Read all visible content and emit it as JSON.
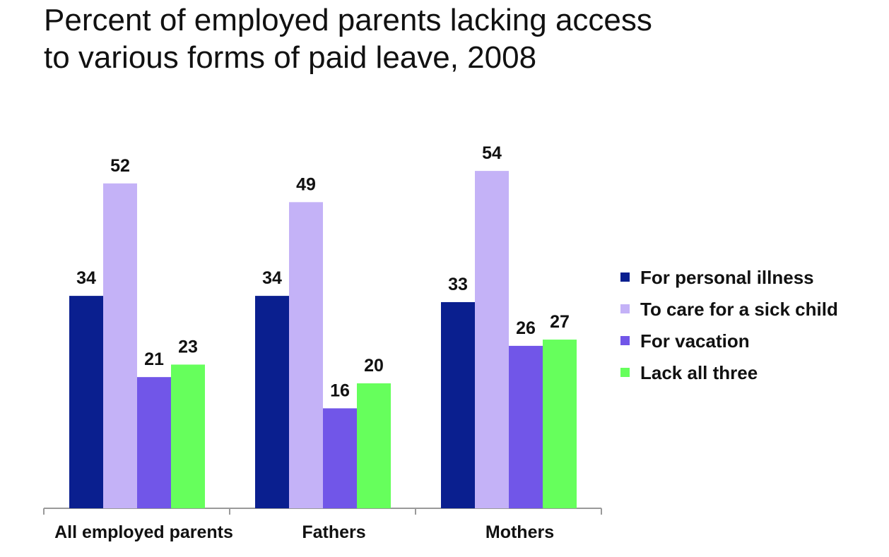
{
  "title_line1": "Percent of employed parents lacking access",
  "title_line2": "to various forms of paid leave, 2008",
  "chart_data": {
    "type": "bar",
    "title": "Percent of employed parents lacking access to various forms of paid leave, 2008",
    "categories": [
      "All employed parents",
      "Fathers",
      "Mothers"
    ],
    "series": [
      {
        "name": "For personal illness",
        "color": "#0a1f8f",
        "values": [
          34,
          34,
          33
        ]
      },
      {
        "name": "To care for a sick child",
        "color": "#c4b2f7",
        "values": [
          52,
          49,
          54
        ]
      },
      {
        "name": "For vacation",
        "color": "#7156e8",
        "values": [
          21,
          16,
          26
        ]
      },
      {
        "name": "Lack all three",
        "color": "#66ff5c",
        "values": [
          23,
          20,
          27
        ]
      }
    ],
    "ylim": [
      0,
      60
    ],
    "grid": false,
    "legend_position": "right"
  }
}
